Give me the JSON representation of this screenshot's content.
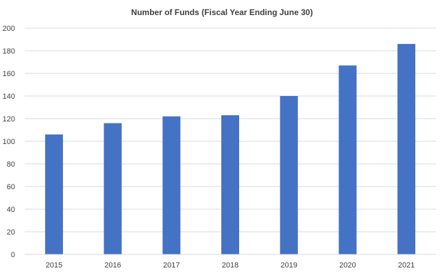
{
  "chart_data": {
    "type": "bar",
    "title": "Number of Funds (Fiscal Year Ending June 30)",
    "categories": [
      "2015",
      "2016",
      "2017",
      "2018",
      "2019",
      "2020",
      "2021"
    ],
    "values": [
      106,
      116,
      122,
      123,
      140,
      167,
      186
    ],
    "xlabel": "",
    "ylabel": "",
    "ylim": [
      0,
      200
    ],
    "yticks": [
      0,
      20,
      40,
      60,
      80,
      100,
      120,
      140,
      160,
      180,
      200
    ],
    "grid": true,
    "legend": "none",
    "bar_color": "#4472C4",
    "grid_color": "#D9D9D9"
  }
}
